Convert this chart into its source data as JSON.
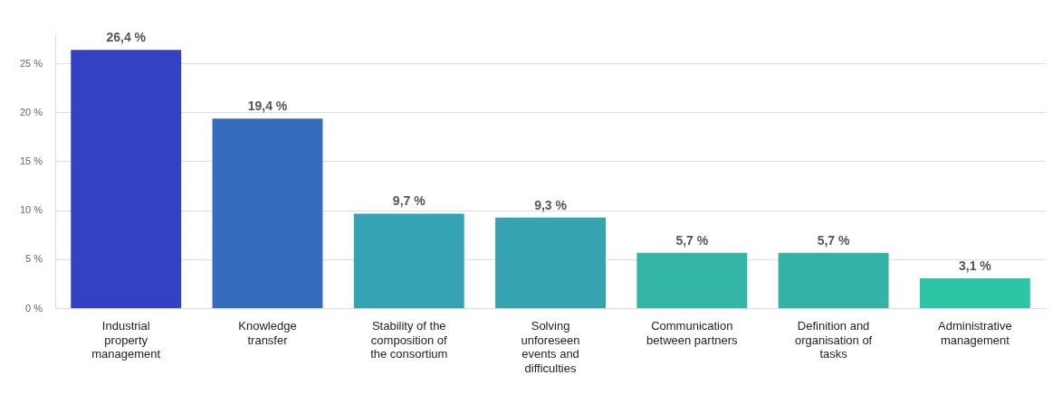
{
  "chart_data": {
    "type": "bar",
    "categories": [
      "Industrial property management",
      "Knowledge transfer",
      "Stability of the composition of the consortium",
      "Solving unforeseen events and difficulties",
      "Communication between partners",
      "Definition and organisation of tasks",
      "Administrative management"
    ],
    "values": [
      26.4,
      19.4,
      9.7,
      9.3,
      5.7,
      5.7,
      3.1
    ],
    "colors": [
      "#3341c4",
      "#356cbd",
      "#35a3b3",
      "#36a4b0",
      "#32b5a5",
      "#33b3a6",
      "#2ec4a6"
    ],
    "value_labels": [
      "26,4 %",
      "19,4 %",
      "9,7 %",
      "9,3 %",
      "5,7 %",
      "5,7 %",
      "3,1 %"
    ],
    "ylim": [
      0,
      28
    ],
    "yticks": [
      {
        "value": 0,
        "label": "0 %"
      },
      {
        "value": 5,
        "label": "5 %"
      },
      {
        "value": 10,
        "label": "10 %"
      },
      {
        "value": 15,
        "label": "15 %"
      },
      {
        "value": 20,
        "label": "20 %"
      },
      {
        "value": 25,
        "label": "25 %"
      }
    ],
    "grid": "y",
    "legend": false
  }
}
